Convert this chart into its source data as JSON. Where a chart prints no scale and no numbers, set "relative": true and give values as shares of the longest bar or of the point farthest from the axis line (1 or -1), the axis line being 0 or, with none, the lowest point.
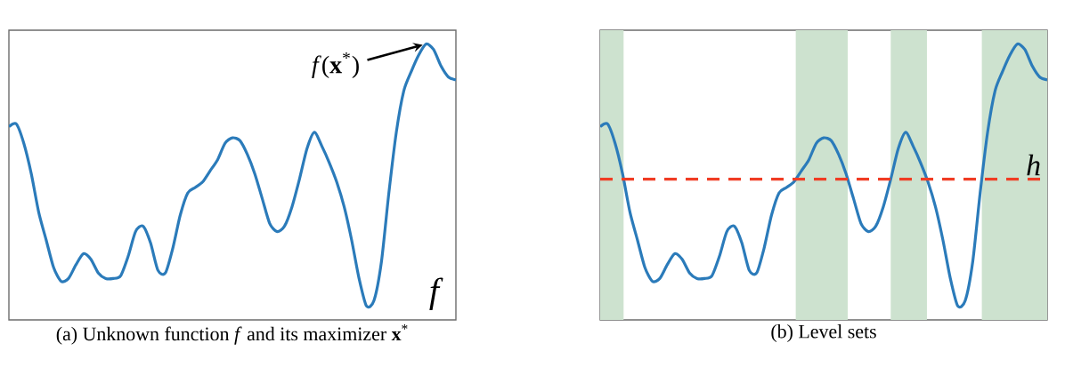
{
  "chart_data": [
    {
      "type": "line",
      "title": "(a) Unknown function *f* and its maximizer **x**$^{*}$",
      "relative": true,
      "color": "#2b7bba",
      "categories": [
        null,
        null,
        null,
        null,
        null,
        null,
        null,
        null,
        null,
        null,
        null,
        null,
        null,
        null,
        null,
        null,
        null,
        null,
        null,
        null,
        null,
        null,
        null,
        null,
        null,
        null,
        null,
        null,
        null,
        null,
        null,
        null,
        null,
        null,
        null,
        null,
        null,
        null,
        null,
        null,
        null,
        null,
        null,
        null,
        null,
        null,
        null,
        null,
        null,
        null,
        null,
        null,
        null,
        null,
        null,
        null,
        null,
        null,
        null,
        null,
        null
      ],
      "values": [
        0.7,
        0.71,
        0.64,
        0.53,
        0.39,
        0.29,
        0.19,
        0.14,
        0.15,
        0.2,
        0.24,
        0.22,
        0.17,
        0.15,
        0.15,
        0.16,
        0.23,
        0.32,
        0.34,
        0.28,
        0.18,
        0.17,
        0.26,
        0.38,
        0.46,
        0.48,
        0.5,
        0.54,
        0.58,
        0.64,
        0.66,
        0.65,
        0.6,
        0.53,
        0.44,
        0.35,
        0.32,
        0.34,
        0.41,
        0.51,
        0.62,
        0.68,
        0.63,
        0.57,
        0.5,
        0.41,
        0.29,
        0.15,
        0.05,
        0.07,
        0.21,
        0.46,
        0.68,
        0.83,
        0.9,
        0.96,
        1,
        0.98,
        0.92,
        0.88,
        0.87
      ],
      "annotations": [
        "*f*(**x**$^{*}$)",
        "*f*"
      ]
    },
    {
      "type": "line",
      "title": "(b) Level sets",
      "relative": true,
      "color": "#2b7bba",
      "categories": [
        null,
        null,
        null,
        null,
        null,
        null,
        null,
        null,
        null,
        null,
        null,
        null,
        null,
        null,
        null,
        null,
        null,
        null,
        null,
        null,
        null,
        null,
        null,
        null,
        null,
        null,
        null,
        null,
        null,
        null,
        null,
        null,
        null,
        null,
        null,
        null,
        null,
        null,
        null,
        null,
        null,
        null,
        null,
        null,
        null,
        null,
        null,
        null,
        null,
        null,
        null,
        null,
        null,
        null,
        null,
        null,
        null,
        null,
        null,
        null,
        null
      ],
      "values": [
        0.7,
        0.71,
        0.64,
        0.53,
        0.39,
        0.29,
        0.19,
        0.14,
        0.15,
        0.2,
        0.24,
        0.22,
        0.17,
        0.15,
        0.15,
        0.16,
        0.23,
        0.32,
        0.34,
        0.28,
        0.18,
        0.17,
        0.26,
        0.38,
        0.46,
        0.48,
        0.5,
        0.54,
        0.58,
        0.64,
        0.66,
        0.65,
        0.6,
        0.53,
        0.44,
        0.35,
        0.32,
        0.34,
        0.41,
        0.51,
        0.62,
        0.68,
        0.63,
        0.57,
        0.5,
        0.41,
        0.29,
        0.15,
        0.05,
        0.07,
        0.21,
        0.46,
        0.68,
        0.83,
        0.9,
        0.96,
        1,
        0.98,
        0.92,
        0.88,
        0.87
      ],
      "ref_lines": [
        {
          "axis": "y",
          "value": 0.51,
          "label": "*h*",
          "color": "#f03c24",
          "line_style": "dashed"
        }
      ]
    }
  ]
}
